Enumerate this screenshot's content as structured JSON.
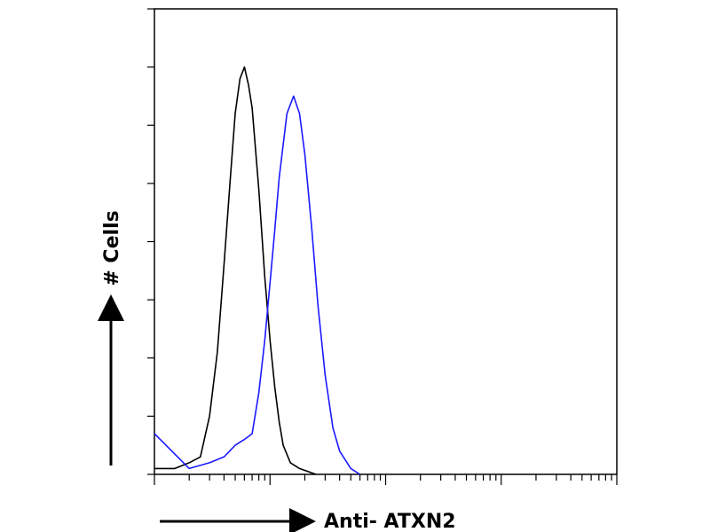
{
  "chart_data": {
    "type": "line",
    "xlabel": "Anti- ATXN2",
    "ylabel": "# Cells",
    "xscale": "log",
    "xlim": [
      1,
      10000
    ],
    "ylim": [
      0,
      80
    ],
    "xticks": [
      1,
      2,
      3,
      4,
      5,
      6,
      7,
      8,
      9,
      10,
      20,
      30,
      40,
      50,
      60,
      70,
      80,
      90,
      100,
      200,
      300,
      400,
      500,
      600,
      700,
      800,
      900,
      1000,
      2000,
      3000,
      4000,
      5000,
      6000,
      7000,
      8000,
      9000,
      10000
    ],
    "yticks": [
      0,
      10,
      20,
      30,
      40,
      50,
      60,
      70,
      80
    ],
    "tick_labels": false,
    "grid": false,
    "series": [
      {
        "color": "#000000",
        "x": [
          1,
          1.5,
          2,
          2.5,
          3,
          3.5,
          4,
          4.5,
          5,
          5.5,
          6,
          6.5,
          7,
          8,
          9,
          10,
          11,
          12,
          13,
          15,
          18,
          25
        ],
        "values": [
          1,
          1,
          2,
          3,
          10,
          21,
          36,
          50,
          62,
          68,
          70,
          67,
          63,
          49,
          34,
          23,
          15,
          9,
          5,
          2,
          1,
          0
        ]
      },
      {
        "color": "#1a1aff",
        "x": [
          1,
          2,
          3,
          4,
          5,
          6,
          7,
          8,
          9,
          10,
          11,
          12,
          14,
          16,
          18,
          20,
          23,
          26,
          30,
          35,
          40,
          50,
          60
        ],
        "values": [
          7,
          1,
          2,
          3,
          5,
          6,
          7,
          14,
          23,
          33,
          42,
          51,
          62,
          65,
          62,
          55,
          42,
          29,
          17,
          8,
          4,
          1,
          0
        ]
      }
    ]
  }
}
